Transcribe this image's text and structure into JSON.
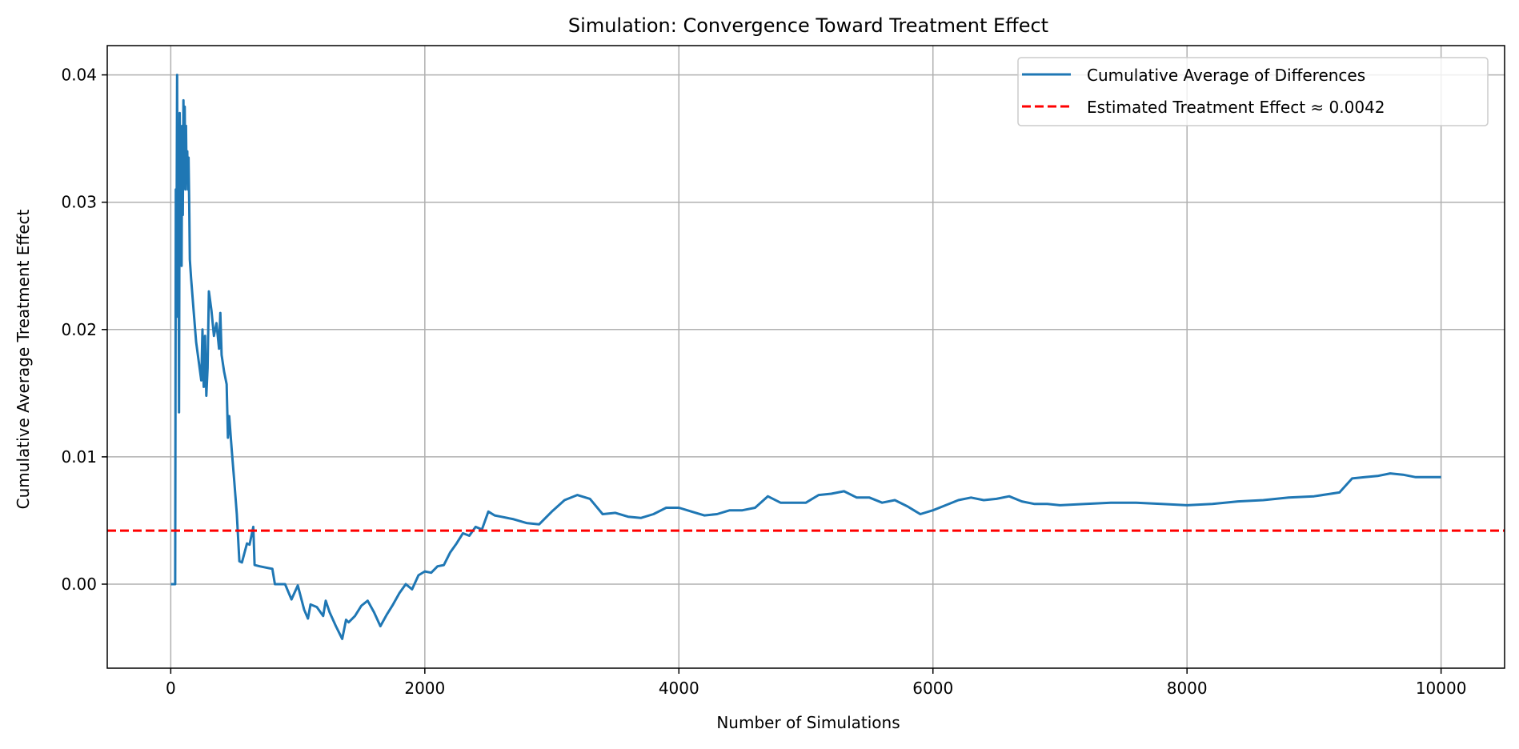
{
  "chart_data": {
    "type": "line",
    "title": "Simulation: Convergence Toward Treatment Effect",
    "xlabel": "Number of Simulations",
    "ylabel": "Cumulative Average Treatment Effect",
    "xlim": [
      -500,
      10500
    ],
    "ylim": [
      -0.0066,
      0.0423
    ],
    "xticks": [
      0,
      2000,
      4000,
      6000,
      8000,
      10000
    ],
    "xtick_labels": [
      "0",
      "2000",
      "4000",
      "6000",
      "8000",
      "10000"
    ],
    "yticks": [
      0.0,
      0.01,
      0.02,
      0.03,
      0.04
    ],
    "ytick_labels": [
      "0.00",
      "0.01",
      "0.02",
      "0.03",
      "0.04"
    ],
    "grid": true,
    "legend_position": "top-right",
    "series": [
      {
        "name": "Cumulative Average of Differences",
        "color": "#1f77b4",
        "style": "solid",
        "x": [
          1,
          30,
          35,
          40,
          45,
          50,
          55,
          60,
          65,
          70,
          75,
          80,
          85,
          90,
          95,
          100,
          105,
          110,
          115,
          120,
          125,
          130,
          135,
          140,
          145,
          150,
          160,
          180,
          200,
          220,
          240,
          250,
          255,
          260,
          270,
          280,
          290,
          300,
          320,
          340,
          360,
          380,
          390,
          400,
          420,
          440,
          450,
          460,
          480,
          500,
          520,
          540,
          560,
          600,
          620,
          650,
          660,
          700,
          750,
          800,
          820,
          850,
          900,
          950,
          1000,
          1050,
          1080,
          1100,
          1150,
          1200,
          1220,
          1250,
          1300,
          1350,
          1380,
          1400,
          1450,
          1500,
          1550,
          1600,
          1650,
          1700,
          1750,
          1800,
          1850,
          1900,
          1950,
          2000,
          2050,
          2100,
          2150,
          2200,
          2250,
          2300,
          2350,
          2400,
          2450,
          2500,
          2550,
          2600,
          2700,
          2800,
          2900,
          3000,
          3100,
          3200,
          3300,
          3400,
          3500,
          3600,
          3700,
          3800,
          3900,
          4000,
          4100,
          4200,
          4300,
          4400,
          4500,
          4600,
          4700,
          4800,
          4900,
          5000,
          5100,
          5200,
          5300,
          5400,
          5500,
          5600,
          5700,
          5800,
          5900,
          6000,
          6100,
          6200,
          6300,
          6400,
          6500,
          6600,
          6700,
          6800,
          6900,
          7000,
          7200,
          7400,
          7600,
          7800,
          8000,
          8200,
          8400,
          8600,
          8800,
          9000,
          9200,
          9300,
          9400,
          9500,
          9600,
          9700,
          9800,
          9900,
          10000
        ],
        "y": [
          0.0,
          0.0,
          0.0,
          0.031,
          0.025,
          0.04,
          0.021,
          0.035,
          0.0135,
          0.037,
          0.03,
          0.0325,
          0.025,
          0.036,
          0.029,
          0.038,
          0.032,
          0.0375,
          0.031,
          0.036,
          0.0315,
          0.034,
          0.031,
          0.0335,
          0.03,
          0.0255,
          0.024,
          0.0215,
          0.019,
          0.0175,
          0.016,
          0.02,
          0.017,
          0.0155,
          0.0195,
          0.0148,
          0.017,
          0.023,
          0.0215,
          0.0195,
          0.0205,
          0.0185,
          0.0213,
          0.018,
          0.0167,
          0.0157,
          0.0115,
          0.0132,
          0.0105,
          0.0081,
          0.0055,
          0.0018,
          0.0017,
          0.0032,
          0.0031,
          0.0045,
          0.0015,
          0.0014,
          0.0013,
          0.0012,
          0.0,
          0.0,
          0.0,
          -0.0012,
          -0.0001,
          -0.002,
          -0.0027,
          -0.0016,
          -0.0018,
          -0.0025,
          -0.0013,
          -0.0022,
          -0.0033,
          -0.0043,
          -0.0028,
          -0.003,
          -0.0025,
          -0.0017,
          -0.0013,
          -0.0022,
          -0.0033,
          -0.0024,
          -0.0016,
          -0.0007,
          0.0,
          -0.0004,
          0.0007,
          0.001,
          0.0009,
          0.0014,
          0.0015,
          0.0025,
          0.0032,
          0.004,
          0.0038,
          0.0045,
          0.0043,
          0.0057,
          0.0054,
          0.0053,
          0.0051,
          0.0048,
          0.0047,
          0.0057,
          0.0066,
          0.007,
          0.0067,
          0.0055,
          0.0056,
          0.0053,
          0.0052,
          0.0055,
          0.006,
          0.006,
          0.0057,
          0.0054,
          0.0055,
          0.0058,
          0.0058,
          0.006,
          0.0069,
          0.0064,
          0.0064,
          0.0064,
          0.007,
          0.0071,
          0.0073,
          0.0068,
          0.0068,
          0.0064,
          0.0066,
          0.0061,
          0.0055,
          0.0058,
          0.0062,
          0.0066,
          0.0068,
          0.0066,
          0.0067,
          0.0069,
          0.0065,
          0.0063,
          0.0063,
          0.0062,
          0.0063,
          0.0064,
          0.0064,
          0.0063,
          0.0062,
          0.0063,
          0.0065,
          0.0066,
          0.0068,
          0.0069,
          0.0072,
          0.0083,
          0.0084,
          0.0085,
          0.0087,
          0.0086,
          0.0084,
          0.0084,
          0.0084
        ]
      },
      {
        "name": "Estimated Treatment Effect ≈ 0.0042",
        "color": "#ff0000",
        "style": "dashed",
        "hline": 0.0042
      }
    ]
  }
}
